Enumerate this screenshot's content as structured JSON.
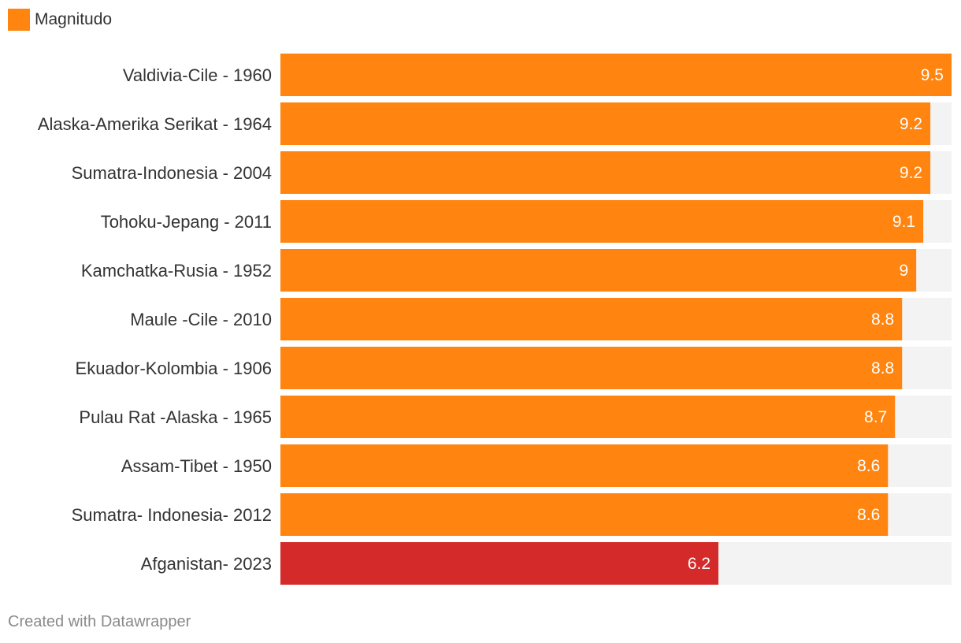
{
  "legend": {
    "label": "Magnitudo",
    "color": "#ff8410"
  },
  "footer": {
    "credit": "Created with Datawrapper"
  },
  "colors": {
    "default_bar": "#ff8410",
    "highlight_bar": "#d42a2a",
    "track": "#f3f3f3"
  },
  "chart_data": {
    "type": "bar",
    "orientation": "horizontal",
    "series_name": "Magnitudo",
    "categories": [
      "Valdivia-Cile - 1960",
      "Alaska-Amerika Serikat - 1964",
      "Sumatra-Indonesia - 2004",
      "Tohoku-Jepang - 2011",
      "Kamchatka-Rusia - 1952",
      "Maule -Cile - 2010",
      "Ekuador-Kolombia - 1906",
      "Pulau Rat -Alaska - 1965",
      "Assam-Tibet - 1950",
      "Sumatra- Indonesia- 2012",
      "Afganistan- 2023"
    ],
    "values": [
      9.5,
      9.2,
      9.2,
      9.1,
      9,
      8.8,
      8.8,
      8.7,
      8.6,
      8.6,
      6.2
    ],
    "value_labels": [
      "9.5",
      "9.2",
      "9.2",
      "9.1",
      "9",
      "8.8",
      "8.8",
      "8.7",
      "8.6",
      "8.6",
      "6.2"
    ],
    "highlighted": [
      "Afganistan- 2023"
    ],
    "xlim": [
      0,
      9.5
    ],
    "title": "",
    "xlabel": "",
    "ylabel": ""
  }
}
